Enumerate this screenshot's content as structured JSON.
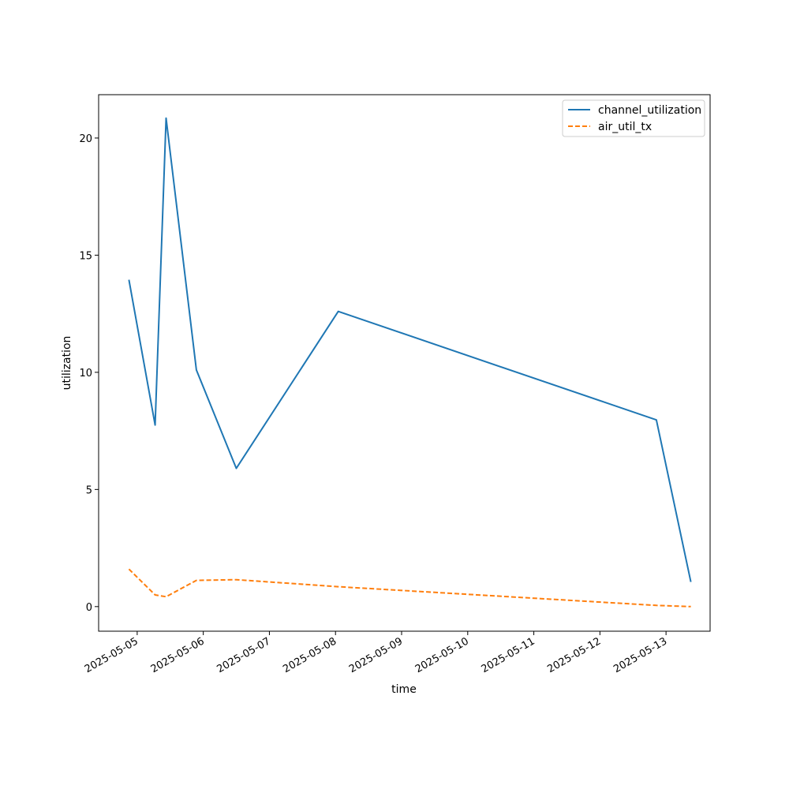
{
  "chart_data": {
    "type": "line",
    "xlabel": "time",
    "ylabel": "utilization",
    "xlim": [
      "2025-05-04T10:00",
      "2025-05-13T16:00"
    ],
    "ylim": [
      -1.05,
      21.85
    ],
    "x_ticks": [
      "2025-05-05",
      "2025-05-06",
      "2025-05-07",
      "2025-05-08",
      "2025-05-09",
      "2025-05-10",
      "2025-05-11",
      "2025-05-12",
      "2025-05-13"
    ],
    "y_ticks": [
      0,
      5,
      10,
      15,
      20
    ],
    "grid": false,
    "legend_position": "top-right",
    "series": [
      {
        "name": "channel_utilization",
        "color": "#1f77b4",
        "style": "solid",
        "points": [
          {
            "x": "2025-05-04T21:00",
            "y": 13.95
          },
          {
            "x": "2025-05-05T06:30",
            "y": 7.75
          },
          {
            "x": "2025-05-05T10:30",
            "y": 20.85
          },
          {
            "x": "2025-05-05T21:30",
            "y": 10.1
          },
          {
            "x": "2025-05-06T12:00",
            "y": 5.9
          },
          {
            "x": "2025-05-08T01:00",
            "y": 12.6
          },
          {
            "x": "2025-05-12T20:30",
            "y": 7.97
          },
          {
            "x": "2025-05-13T09:00",
            "y": 1.05
          }
        ]
      },
      {
        "name": "air_util_tx",
        "color": "#ff7f0e",
        "style": "dashed",
        "points": [
          {
            "x": "2025-05-04T21:00",
            "y": 1.6
          },
          {
            "x": "2025-05-05T06:30",
            "y": 0.5
          },
          {
            "x": "2025-05-05T10:30",
            "y": 0.42
          },
          {
            "x": "2025-05-05T21:30",
            "y": 1.12
          },
          {
            "x": "2025-05-06T12:00",
            "y": 1.15
          },
          {
            "x": "2025-05-08T01:00",
            "y": 0.85
          },
          {
            "x": "2025-05-12T20:30",
            "y": 0.05
          },
          {
            "x": "2025-05-13T09:00",
            "y": 0.0
          }
        ]
      }
    ]
  }
}
